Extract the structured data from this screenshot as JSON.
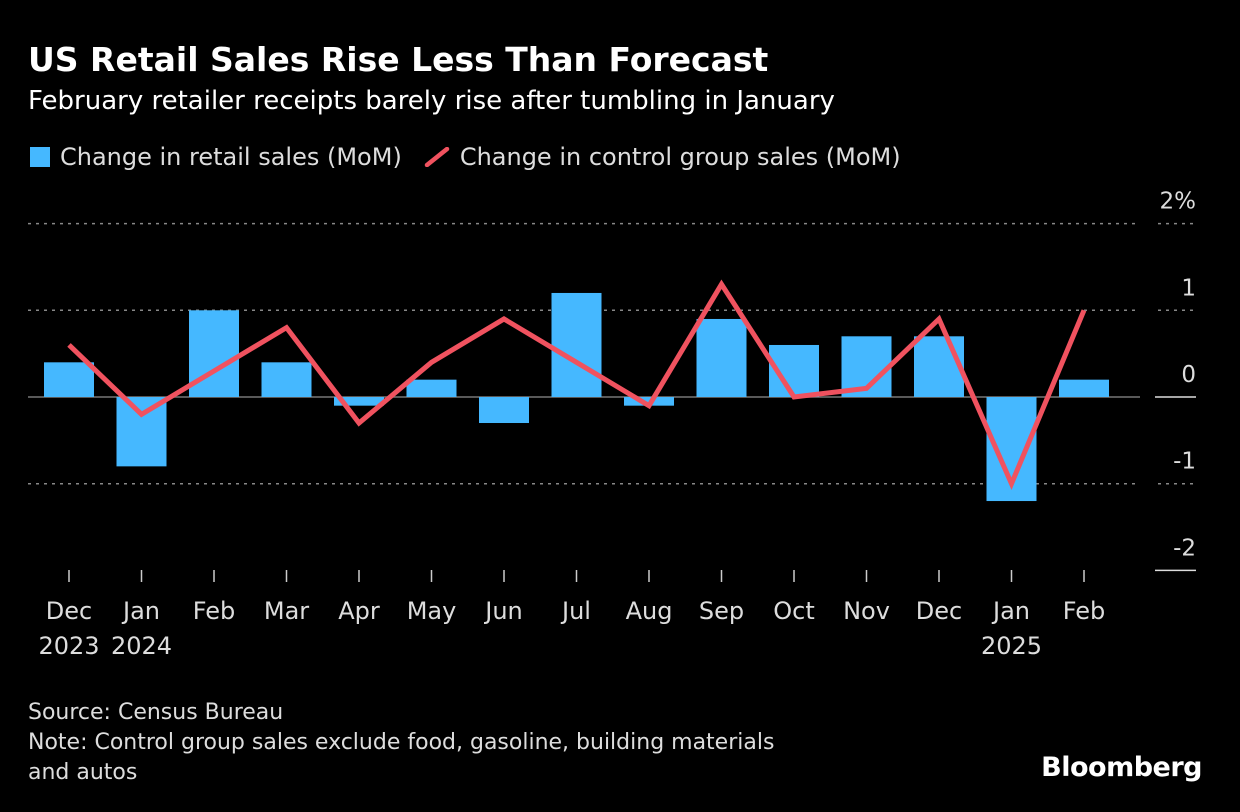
{
  "title": "US Retail Sales Rise Less Than Forecast",
  "subtitle": "February retailer receipts barely rise after tumbling in January",
  "footer": {
    "source": "Source: Census Bureau",
    "note_line1": "Note: Control group sales exclude food, gasoline, building materials",
    "note_line2": "and autos",
    "logo": "Bloomberg"
  },
  "chart_data": {
    "type": "bar+line",
    "categories": [
      "Dec",
      "Jan",
      "Feb",
      "Mar",
      "Apr",
      "May",
      "Jun",
      "Jul",
      "Aug",
      "Sep",
      "Oct",
      "Nov",
      "Dec",
      "Jan",
      "Feb"
    ],
    "year_labels": {
      "0": "2023",
      "1": "2024",
      "13": "2025"
    },
    "series": [
      {
        "name": "Change in retail sales (MoM)",
        "type": "bar",
        "color": "#45b8ff",
        "values": [
          0.4,
          -0.8,
          1.0,
          0.4,
          -0.1,
          0.2,
          -0.3,
          1.2,
          -0.1,
          0.9,
          0.6,
          0.7,
          0.7,
          -1.2,
          0.2
        ]
      },
      {
        "name": "Change in control group sales (MoM)",
        "type": "line",
        "color": "#f0525f",
        "values": [
          0.6,
          -0.2,
          0.3,
          0.8,
          -0.3,
          0.4,
          0.9,
          0.4,
          -0.1,
          1.3,
          0.0,
          0.1,
          0.9,
          -1.0,
          1.0
        ]
      }
    ],
    "yticks": [
      2,
      1,
      0,
      -1,
      -2
    ],
    "ytick_labels": [
      "2%",
      "1",
      "0",
      "-1",
      "-2"
    ],
    "ylim": [
      -2,
      2
    ],
    "grid": true,
    "legend_position": "top-left",
    "axis_position": "right"
  }
}
